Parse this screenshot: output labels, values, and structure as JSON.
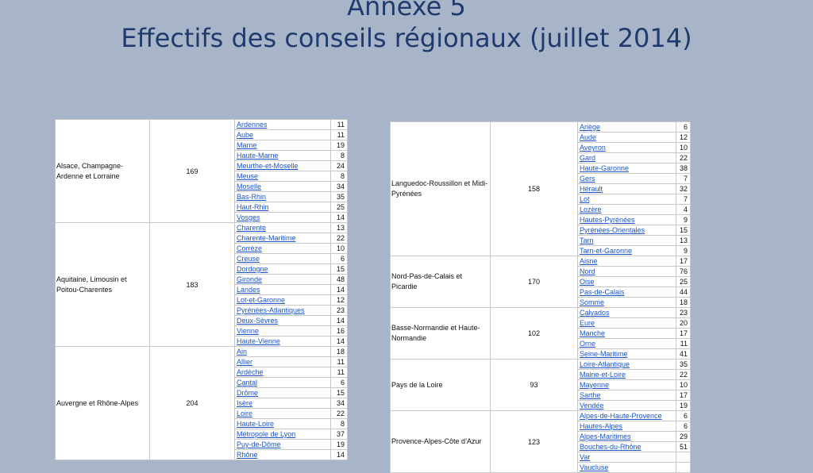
{
  "title": {
    "line1": "Annexe 5",
    "line2": "Effectifs des conseils régionaux (juillet 2014)"
  },
  "left_table": [
    {
      "region": "Alsace, Champagne-Ardenne et Lorraine",
      "total": "169",
      "departments": [
        {
          "name": "Ardennes",
          "count": "11"
        },
        {
          "name": "Aube",
          "count": "11"
        },
        {
          "name": "Marne",
          "count": "19"
        },
        {
          "name": "Haute-Marne",
          "count": "8"
        },
        {
          "name": "Meurthe-et-Moselle",
          "count": "24"
        },
        {
          "name": "Meuse",
          "count": "8"
        },
        {
          "name": "Moselle",
          "count": "34"
        },
        {
          "name": "Bas-Rhin",
          "count": "35"
        },
        {
          "name": "Haut-Rhin",
          "count": "25"
        },
        {
          "name": "Vosges",
          "count": "14"
        }
      ]
    },
    {
      "region": "Aquitaine, Limousin et Poitou-Charentes",
      "total": "183",
      "departments": [
        {
          "name": "Charente",
          "count": "13"
        },
        {
          "name": "Charente-Maritime",
          "count": "22"
        },
        {
          "name": "Corrèze",
          "count": "10"
        },
        {
          "name": "Creuse",
          "count": "6"
        },
        {
          "name": "Dordogne",
          "count": "15"
        },
        {
          "name": "Gironde",
          "count": "48"
        },
        {
          "name": "Landes",
          "count": "14"
        },
        {
          "name": "Lot-et-Garonne",
          "count": "12"
        },
        {
          "name": "Pyrénées-Atlantiques",
          "count": "23"
        },
        {
          "name": "Deux-Sèvres",
          "count": "14"
        },
        {
          "name": "Vienne",
          "count": "16"
        },
        {
          "name": "Haute-Vienne",
          "count": "14"
        }
      ]
    },
    {
      "region": "Auvergne et Rhône-Alpes",
      "total": "204",
      "departments": [
        {
          "name": "Ain",
          "count": "18"
        },
        {
          "name": "Allier",
          "count": "11"
        },
        {
          "name": "Ardèche",
          "count": "11"
        },
        {
          "name": "Cantal",
          "count": "6"
        },
        {
          "name": "Drôme",
          "count": "15"
        },
        {
          "name": "Isère",
          "count": "34"
        },
        {
          "name": "Loire",
          "count": "22"
        },
        {
          "name": "Haute-Loire",
          "count": "8"
        },
        {
          "name": "Métropole de Lyon",
          "count": "37"
        },
        {
          "name": "Puy-de-Dôme",
          "count": "19"
        },
        {
          "name": "Rhône",
          "count": "14"
        }
      ]
    }
  ],
  "right_table": [
    {
      "region": "Languedoc-Roussillon et Midi-Pyrénées",
      "total": "158",
      "departments": [
        {
          "name": "Ariège",
          "count": "6"
        },
        {
          "name": "Aude",
          "count": "12"
        },
        {
          "name": "Aveyron",
          "count": "10"
        },
        {
          "name": "Gard",
          "count": "22"
        },
        {
          "name": "Haute-Garonne",
          "count": "38"
        },
        {
          "name": "Gers",
          "count": "7"
        },
        {
          "name": "Hérault",
          "count": "32"
        },
        {
          "name": "Lot",
          "count": "7"
        },
        {
          "name": "Lozère",
          "count": "4"
        },
        {
          "name": "Hautes-Pyrénées",
          "count": "9"
        },
        {
          "name": "Pyrénées-Orientales",
          "count": "15"
        },
        {
          "name": "Tarn",
          "count": "13"
        },
        {
          "name": "Tarn-et-Garonne",
          "count": "9"
        }
      ]
    },
    {
      "region": "Nord-Pas-de-Calais et Picardie",
      "total": "170",
      "departments": [
        {
          "name": "Aisne",
          "count": "17"
        },
        {
          "name": "Nord",
          "count": "76"
        },
        {
          "name": "Oise",
          "count": "25"
        },
        {
          "name": "Pas-de-Calais",
          "count": "44"
        },
        {
          "name": "Somme",
          "count": "18"
        }
      ]
    },
    {
      "region": "Basse-Normandie et Haute-Normandie",
      "total": "102",
      "departments": [
        {
          "name": "Calvados",
          "count": "23"
        },
        {
          "name": "Eure",
          "count": "20"
        },
        {
          "name": "Manche",
          "count": "17"
        },
        {
          "name": "Orne",
          "count": "11"
        },
        {
          "name": "Seine-Maritime",
          "count": "41"
        }
      ]
    },
    {
      "region": "Pays de la Loire",
      "total": "93",
      "departments": [
        {
          "name": "Loire-Atlantique",
          "count": "35"
        },
        {
          "name": "Maine-et-Loire",
          "count": "22"
        },
        {
          "name": "Mayenne",
          "count": "10"
        },
        {
          "name": "Sarthe",
          "count": "17"
        },
        {
          "name": "Vendée",
          "count": "19"
        }
      ]
    },
    {
      "region": "Provence-Alpes-Côte d’Azur",
      "total": "123",
      "departments": [
        {
          "name": "Alpes-de-Haute-Provence",
          "count": "6"
        },
        {
          "name": "Hautes-Alpes",
          "count": "6"
        },
        {
          "name": "Alpes-Maritimes",
          "count": "29"
        },
        {
          "name": "Bouches-du-Rhône",
          "count": "51"
        },
        {
          "name": "Var",
          "count": ""
        },
        {
          "name": "Vaucluse",
          "count": ""
        }
      ]
    }
  ]
}
